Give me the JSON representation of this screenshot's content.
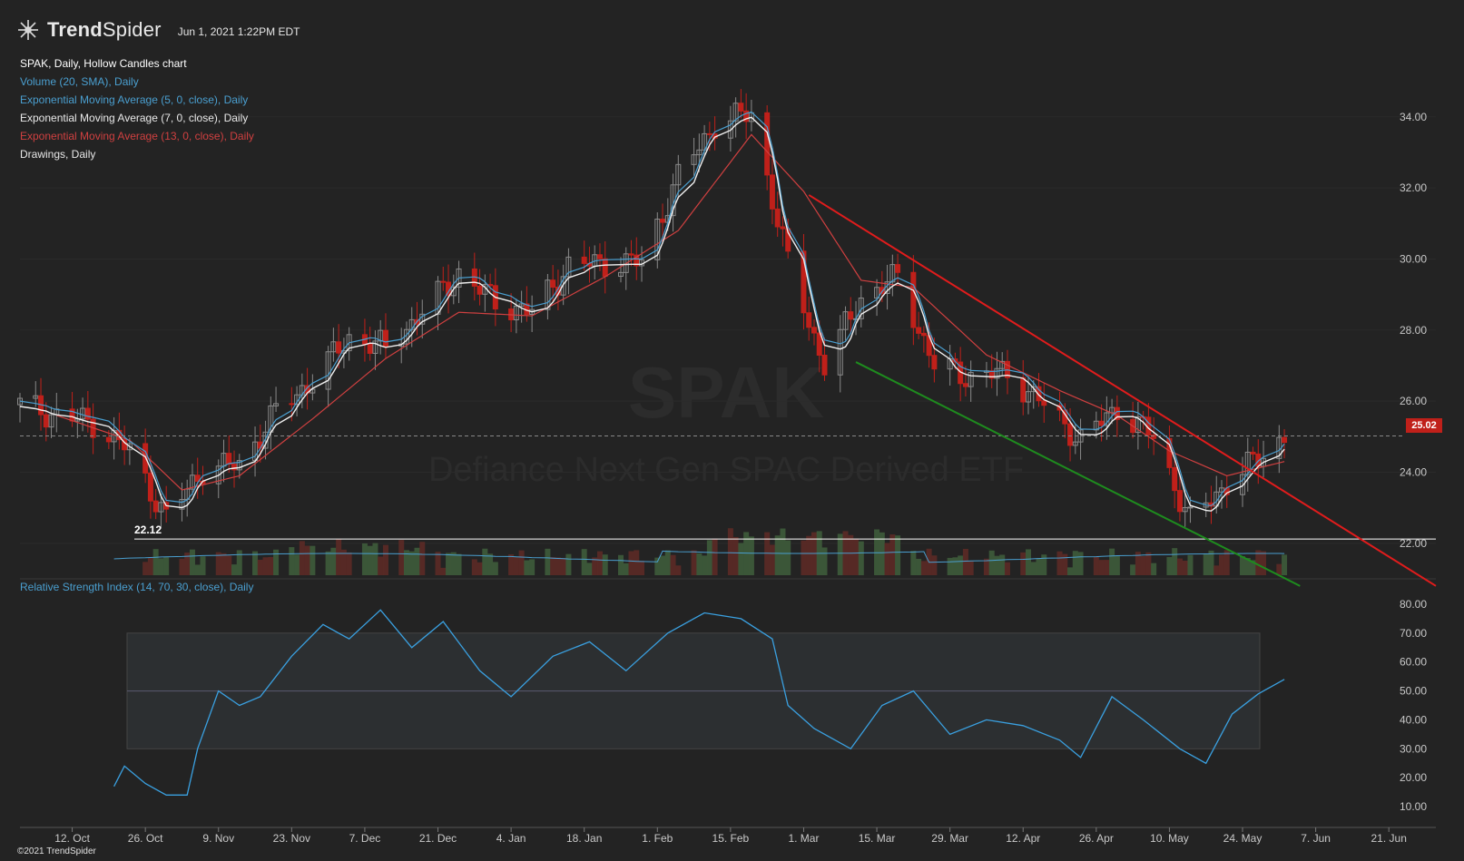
{
  "header": {
    "brand_bold": "Trend",
    "brand_thin": "Spider",
    "timestamp": "Jun 1, 2021 1:22PM EDT",
    "logo_icon": "spider-logo-icon"
  },
  "legend": {
    "title": "SPAK, Daily, Hollow Candles chart",
    "items": [
      {
        "label": "Volume (20, SMA), Daily",
        "color": "#4a9fd0"
      },
      {
        "label": "Exponential Moving Average (5, 0, close), Daily",
        "color": "#4a9fd0"
      },
      {
        "label": "Exponential Moving Average (7, 0, close), Daily",
        "color": "#e8e8e8"
      },
      {
        "label": "Exponential Moving Average (13, 0, close), Daily",
        "color": "#d04040"
      },
      {
        "label": "Drawings, Daily",
        "color": "#e8e8e8"
      }
    ]
  },
  "rsi_label": "Relative Strength Index (14, 70, 30, close), Daily",
  "copyright": "©2021 TrendSpider",
  "watermark": {
    "symbol": "SPAK",
    "name": "Defiance Next Gen SPAC Derived ETF"
  },
  "last_price": "25.02",
  "support_label": "22.12",
  "colors": {
    "background": "#232323",
    "up": "#8a8a8a",
    "down": "#c0201a",
    "ema5": "#4a9fd0",
    "ema7": "#f0f0f0",
    "ema13": "#d04040",
    "rsi": "#3aa0e0",
    "trend_upper": "#e01c1c",
    "trend_lower": "#1e8c1e"
  },
  "chart_data": {
    "type": "candlestick",
    "x_ticks": [
      "12. Oct",
      "26. Oct",
      "9. Nov",
      "23. Nov",
      "7. Dec",
      "21. Dec",
      "4. Jan",
      "18. Jan",
      "1. Feb",
      "15. Feb",
      "1. Mar",
      "15. Mar",
      "29. Mar",
      "12. Apr",
      "26. Apr",
      "10. May",
      "24. May",
      "7. Jun",
      "21. Jun"
    ],
    "x_start": "2020-10-02",
    "x_end": "2021-06-30",
    "price_ticks": [
      22,
      24,
      26,
      28,
      30,
      32,
      34
    ],
    "price_tick_labels": [
      "22.00",
      "24.00",
      "26.00",
      "28.00",
      "30.00",
      "32.00",
      "34.00"
    ],
    "price_range": [
      21.0,
      35.5
    ],
    "closes": [
      {
        "date": "2020-10-02",
        "close": 25.9
      },
      {
        "date": "2020-10-09",
        "close": 25.6
      },
      {
        "date": "2020-10-16",
        "close": 25.4
      },
      {
        "date": "2020-10-23",
        "close": 24.6
      },
      {
        "date": "2020-10-30",
        "close": 22.7
      },
      {
        "date": "2020-11-06",
        "close": 24.1
      },
      {
        "date": "2020-11-13",
        "close": 24.2
      },
      {
        "date": "2020-11-20",
        "close": 25.7
      },
      {
        "date": "2020-11-27",
        "close": 26.6
      },
      {
        "date": "2020-12-04",
        "close": 27.8
      },
      {
        "date": "2020-12-11",
        "close": 27.5
      },
      {
        "date": "2020-12-18",
        "close": 28.5
      },
      {
        "date": "2020-12-25",
        "close": 29.6
      },
      {
        "date": "2021-01-01",
        "close": 28.8
      },
      {
        "date": "2021-01-08",
        "close": 28.5
      },
      {
        "date": "2021-01-15",
        "close": 29.8
      },
      {
        "date": "2021-01-22",
        "close": 29.9
      },
      {
        "date": "2021-01-29",
        "close": 29.9
      },
      {
        "date": "2021-02-05",
        "close": 32.3
      },
      {
        "date": "2021-02-12",
        "close": 33.8
      },
      {
        "date": "2021-02-19",
        "close": 34.1
      },
      {
        "date": "2021-02-26",
        "close": 29.9
      },
      {
        "date": "2021-03-05",
        "close": 27.0
      },
      {
        "date": "2021-03-12",
        "close": 28.9
      },
      {
        "date": "2021-03-19",
        "close": 29.5
      },
      {
        "date": "2021-03-26",
        "close": 27.0
      },
      {
        "date": "2021-04-02",
        "close": 26.7
      },
      {
        "date": "2021-04-09",
        "close": 26.8
      },
      {
        "date": "2021-04-16",
        "close": 25.9
      },
      {
        "date": "2021-04-23",
        "close": 24.9
      },
      {
        "date": "2021-04-30",
        "close": 25.8
      },
      {
        "date": "2021-05-07",
        "close": 25.0
      },
      {
        "date": "2021-05-14",
        "close": 22.6
      },
      {
        "date": "2021-05-21",
        "close": 23.7
      },
      {
        "date": "2021-05-28",
        "close": 24.5
      },
      {
        "date": "2021-06-01",
        "close": 25.02
      }
    ],
    "ema13": [
      {
        "date": "2020-10-09",
        "value": 25.6
      },
      {
        "date": "2020-10-23",
        "value": 24.9
      },
      {
        "date": "2020-11-02",
        "value": 23.5
      },
      {
        "date": "2020-11-13",
        "value": 23.9
      },
      {
        "date": "2020-11-27",
        "value": 25.5
      },
      {
        "date": "2020-12-11",
        "value": 27.2
      },
      {
        "date": "2020-12-25",
        "value": 28.5
      },
      {
        "date": "2021-01-08",
        "value": 28.4
      },
      {
        "date": "2021-01-22",
        "value": 29.5
      },
      {
        "date": "2021-02-05",
        "value": 30.8
      },
      {
        "date": "2021-02-19",
        "value": 33.5
      },
      {
        "date": "2021-03-01",
        "value": 31.9
      },
      {
        "date": "2021-03-12",
        "value": 29.4
      },
      {
        "date": "2021-03-22",
        "value": 29.2
      },
      {
        "date": "2021-04-05",
        "value": 27.3
      },
      {
        "date": "2021-04-19",
        "value": 26.3
      },
      {
        "date": "2021-04-30",
        "value": 25.6
      },
      {
        "date": "2021-05-10",
        "value": 24.6
      },
      {
        "date": "2021-05-21",
        "value": 23.9
      },
      {
        "date": "2021-06-01",
        "value": 24.3
      }
    ],
    "volume_sma_scale_note": "",
    "rsi_ticks": [
      10,
      20,
      30,
      40,
      50,
      60,
      70,
      80
    ],
    "rsi_tick_labels": [
      "10.00",
      "20.00",
      "30.00",
      "40.00",
      "50.00",
      "60.00",
      "70.00",
      "80.00"
    ],
    "rsi_band": [
      30,
      70
    ],
    "rsi_mid": 50,
    "rsi": [
      {
        "date": "2020-10-20",
        "value": 17
      },
      {
        "date": "2020-10-22",
        "value": 24
      },
      {
        "date": "2020-10-26",
        "value": 18
      },
      {
        "date": "2020-10-30",
        "value": 14
      },
      {
        "date": "2020-11-03",
        "value": 14
      },
      {
        "date": "2020-11-05",
        "value": 30
      },
      {
        "date": "2020-11-09",
        "value": 50
      },
      {
        "date": "2020-11-13",
        "value": 45
      },
      {
        "date": "2020-11-17",
        "value": 48
      },
      {
        "date": "2020-11-23",
        "value": 62
      },
      {
        "date": "2020-11-29",
        "value": 73
      },
      {
        "date": "2020-12-04",
        "value": 68
      },
      {
        "date": "2020-12-10",
        "value": 78
      },
      {
        "date": "2020-12-16",
        "value": 65
      },
      {
        "date": "2020-12-22",
        "value": 74
      },
      {
        "date": "2020-12-29",
        "value": 57
      },
      {
        "date": "2021-01-04",
        "value": 48
      },
      {
        "date": "2021-01-12",
        "value": 62
      },
      {
        "date": "2021-01-19",
        "value": 67
      },
      {
        "date": "2021-01-26",
        "value": 57
      },
      {
        "date": "2021-02-03",
        "value": 70
      },
      {
        "date": "2021-02-10",
        "value": 77
      },
      {
        "date": "2021-02-17",
        "value": 75
      },
      {
        "date": "2021-02-23",
        "value": 68
      },
      {
        "date": "2021-02-26",
        "value": 45
      },
      {
        "date": "2021-03-03",
        "value": 37
      },
      {
        "date": "2021-03-10",
        "value": 30
      },
      {
        "date": "2021-03-16",
        "value": 45
      },
      {
        "date": "2021-03-22",
        "value": 50
      },
      {
        "date": "2021-03-29",
        "value": 35
      },
      {
        "date": "2021-04-05",
        "value": 40
      },
      {
        "date": "2021-04-12",
        "value": 38
      },
      {
        "date": "2021-04-19",
        "value": 33
      },
      {
        "date": "2021-04-23",
        "value": 27
      },
      {
        "date": "2021-04-29",
        "value": 48
      },
      {
        "date": "2021-05-05",
        "value": 40
      },
      {
        "date": "2021-05-12",
        "value": 30
      },
      {
        "date": "2021-05-17",
        "value": 25
      },
      {
        "date": "2021-05-22",
        "value": 42
      },
      {
        "date": "2021-05-27",
        "value": 49
      },
      {
        "date": "2021-06-01",
        "value": 54
      }
    ],
    "horizontal_lines": [
      {
        "price": 22.12,
        "label": "22.12"
      },
      {
        "price": 25.02,
        "style": "dashed"
      }
    ],
    "trendlines": [
      {
        "from": {
          "date": "2021-03-02",
          "price": 31.8
        },
        "to": {
          "date": "2021-06-30",
          "price": 20.8
        },
        "color": "upper"
      },
      {
        "from": {
          "date": "2021-03-11",
          "price": 27.1
        },
        "to": {
          "date": "2021-06-04",
          "price": 20.8
        },
        "color": "lower"
      }
    ]
  }
}
